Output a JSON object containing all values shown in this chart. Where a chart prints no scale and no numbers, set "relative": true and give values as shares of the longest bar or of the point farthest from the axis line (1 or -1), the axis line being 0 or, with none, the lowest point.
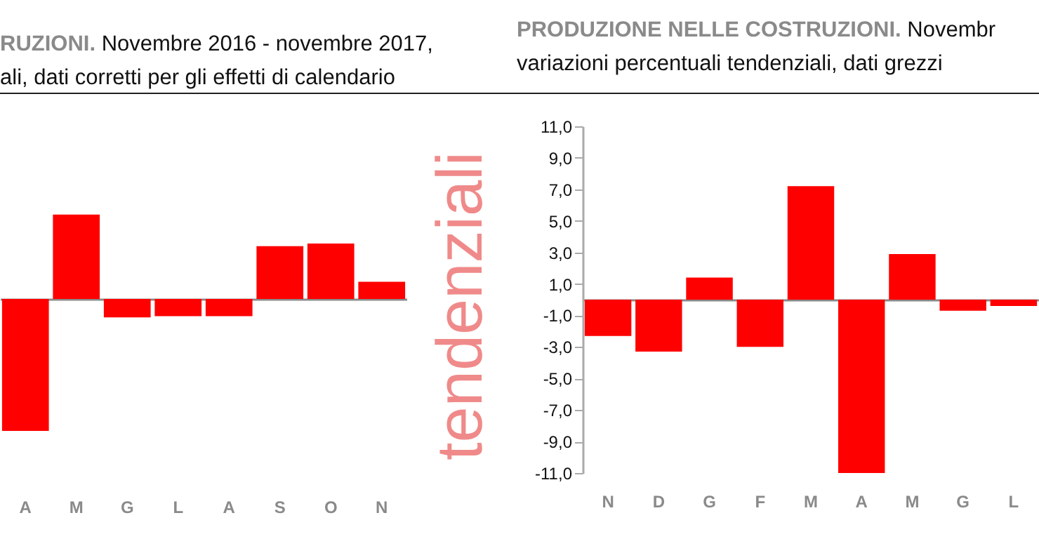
{
  "chart_data": [
    {
      "type": "bar",
      "title": "RUZIONI. Novembre 2016 - novembre 2017,",
      "subtitle": "ali, dati corretti per gli effetti di calendario",
      "relative": true,
      "categories": [
        "A",
        "M",
        "G",
        "L",
        "A",
        "S",
        "O",
        "N"
      ],
      "values": [
        -1,
        0.64,
        -0.14,
        -0.13,
        -0.13,
        0.4,
        0.42,
        0.13
      ],
      "color": "#ff0000",
      "annotations": [
        "tendenziali"
      ]
    },
    {
      "type": "bar",
      "title": "PRODUZIONE NELLE COSTRUZIONI. Novembr",
      "subtitle": "variazioni percentuali tendenziali, dati grezzi",
      "categories": [
        "N",
        "D",
        "G",
        "F",
        "M",
        "A",
        "M",
        "G",
        "L"
      ],
      "values": [
        -2.3,
        -3.3,
        1.4,
        -3.0,
        7.2,
        -11.0,
        2.9,
        -0.7,
        -0.4
      ],
      "color": "#ff0000",
      "ylim": [
        -11,
        11
      ],
      "yticks": [
        {
          "value": 11,
          "label": "11,0"
        },
        {
          "value": 9,
          "label": "9,0"
        },
        {
          "value": 7,
          "label": "7,0"
        },
        {
          "value": 5,
          "label": "5,0"
        },
        {
          "value": 3,
          "label": "3,0"
        },
        {
          "value": 1,
          "label": "1,0"
        },
        {
          "value": -1,
          "label": "-1,0"
        },
        {
          "value": -3,
          "label": "-3,0"
        },
        {
          "value": -5,
          "label": "-5,0"
        },
        {
          "value": -7,
          "label": "-7,0"
        },
        {
          "value": -9,
          "label": "-9,0"
        },
        {
          "value": -11,
          "label": "-11,0"
        }
      ]
    }
  ]
}
